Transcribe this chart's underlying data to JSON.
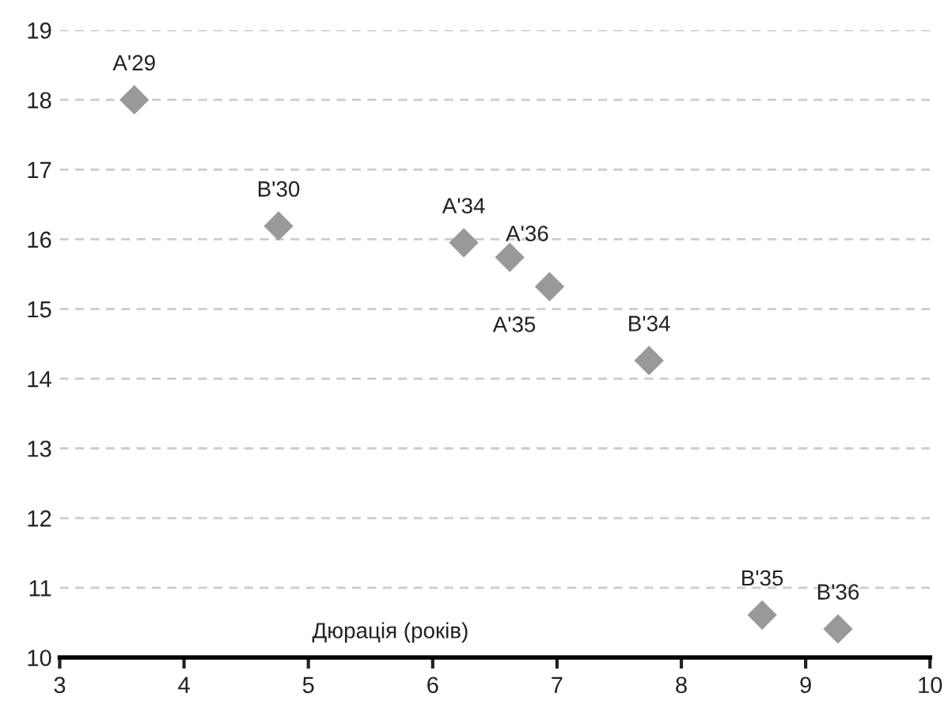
{
  "chart_data": {
    "type": "scatter",
    "xlabel": "Дюрація (років)",
    "marker": "diamond",
    "grid": "y",
    "series": [
      {
        "color": "#999999",
        "x": [
          3.6,
          4.76,
          6.25,
          6.62,
          6.94,
          7.74,
          8.65,
          9.26
        ],
        "values": [
          18.0,
          16.19,
          15.95,
          15.74,
          15.32,
          14.26,
          10.61,
          10.41
        ]
      }
    ],
    "annotations": [
      {
        "text": "A'29",
        "x": 3.6,
        "y": 18.0
      },
      {
        "text": "B'30",
        "x": 4.76,
        "y": 16.19
      },
      {
        "text": "A'34",
        "x": 6.25,
        "y": 15.95
      },
      {
        "text": "A'36",
        "x": 6.62,
        "y": 15.74
      },
      {
        "text": "A'35",
        "x": 6.94,
        "y": 15.32
      },
      {
        "text": "B'34",
        "x": 7.74,
        "y": 14.26
      },
      {
        "text": "B'35",
        "x": 8.65,
        "y": 10.61
      },
      {
        "text": "B'36",
        "x": 9.26,
        "y": 10.41
      }
    ],
    "xlim": [
      3,
      10
    ],
    "ylim": [
      10,
      19
    ],
    "xticks": [
      3,
      4,
      5,
      6,
      7,
      8,
      9,
      10
    ],
    "yticks": [
      10,
      11,
      12,
      13,
      14,
      15,
      16,
      17,
      18,
      19
    ]
  }
}
